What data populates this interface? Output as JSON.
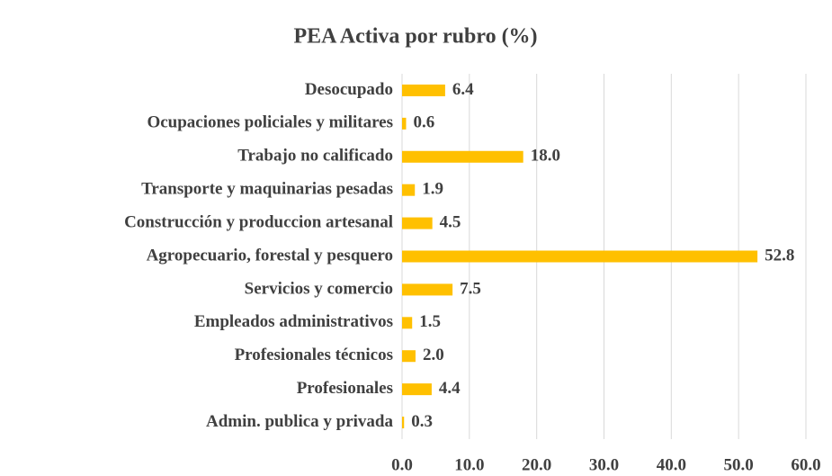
{
  "chart_data": {
    "type": "hbar",
    "title": "PEA Activa por rubro (%)",
    "categories": [
      "Desocupado",
      "Ocupaciones policiales y militares",
      "Trabajo no calificado",
      "Transporte y maquinarias pesadas",
      "Construcción y produccion artesanal",
      "Agropecuario, forestal y pesquero",
      "Servicios y comercio",
      "Empleados administrativos",
      "Profesionales técnicos",
      "Profesionales",
      "Admin. publica y privada"
    ],
    "values": [
      6.4,
      0.6,
      18.0,
      1.9,
      4.5,
      52.8,
      7.5,
      1.5,
      2.0,
      4.4,
      0.3
    ],
    "value_labels": [
      "6.4",
      "0.6",
      "18.0",
      "1.9",
      "4.5",
      "52.8",
      "7.5",
      "1.5",
      "2.0",
      "4.4",
      "0.3"
    ],
    "color": "#ffc000",
    "xlim": [
      0,
      60
    ],
    "xticks": [
      {
        "value": 0,
        "label": "0.0"
      },
      {
        "value": 10,
        "label": "10.0"
      },
      {
        "value": 20,
        "label": "20.0"
      },
      {
        "value": 30,
        "label": "30.0"
      },
      {
        "value": 40,
        "label": "40.0"
      },
      {
        "value": 50,
        "label": "50.0"
      },
      {
        "value": 60,
        "label": "60.0"
      }
    ],
    "grid": true
  }
}
